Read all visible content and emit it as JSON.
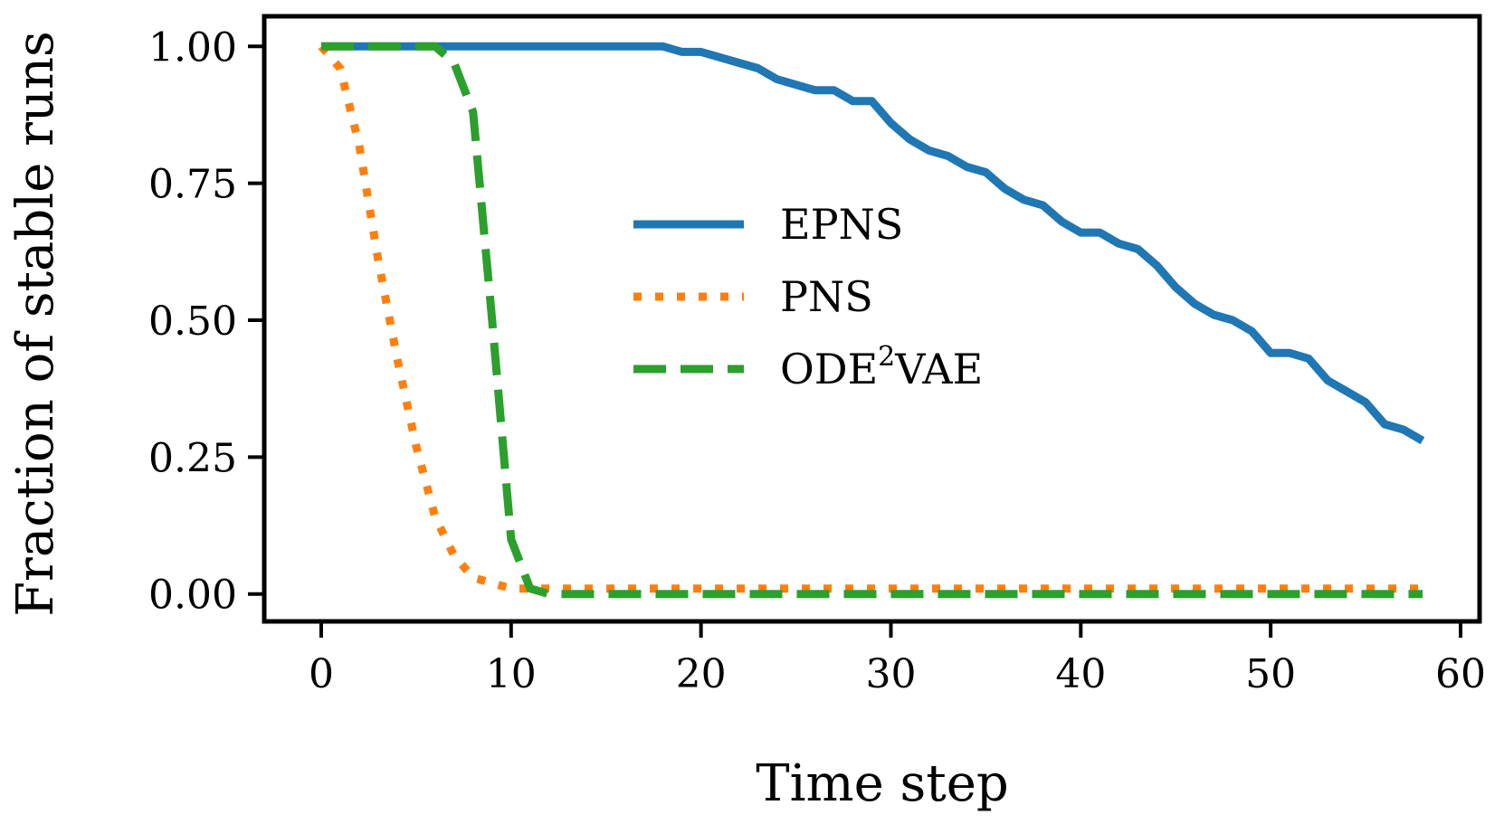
{
  "chart_data": {
    "type": "line",
    "xlabel": "Time step",
    "ylabel": "Fraction of stable runs",
    "xlim": [
      -3,
      61
    ],
    "ylim": [
      -0.05,
      1.055
    ],
    "xticks": [
      0,
      10,
      20,
      30,
      40,
      50,
      60
    ],
    "xtick_labels": [
      "0",
      "10",
      "20",
      "30",
      "40",
      "50",
      "60"
    ],
    "yticks": [
      0.0,
      0.25,
      0.5,
      0.75,
      1.0
    ],
    "ytick_labels": [
      "0.00",
      "0.25",
      "0.50",
      "0.75",
      "1.00"
    ],
    "grid": false,
    "legend_position": "center",
    "series": [
      {
        "name": "EPNS",
        "style": "solid",
        "color": "#1f77b4",
        "x": [
          0,
          1,
          2,
          3,
          4,
          5,
          6,
          7,
          8,
          9,
          10,
          11,
          12,
          13,
          14,
          15,
          16,
          17,
          18,
          19,
          20,
          21,
          22,
          23,
          24,
          25,
          26,
          27,
          28,
          29,
          30,
          31,
          32,
          33,
          34,
          35,
          36,
          37,
          38,
          39,
          40,
          41,
          42,
          43,
          44,
          45,
          46,
          47,
          48,
          49,
          50,
          51,
          52,
          53,
          54,
          55,
          56,
          57,
          58
        ],
        "y": [
          1.0,
          1.0,
          1.0,
          1.0,
          1.0,
          1.0,
          1.0,
          1.0,
          1.0,
          1.0,
          1.0,
          1.0,
          1.0,
          1.0,
          1.0,
          1.0,
          1.0,
          1.0,
          1.0,
          0.99,
          0.99,
          0.98,
          0.97,
          0.96,
          0.94,
          0.93,
          0.92,
          0.92,
          0.9,
          0.9,
          0.86,
          0.83,
          0.81,
          0.8,
          0.78,
          0.77,
          0.74,
          0.72,
          0.71,
          0.68,
          0.66,
          0.66,
          0.64,
          0.63,
          0.6,
          0.56,
          0.53,
          0.51,
          0.5,
          0.48,
          0.44,
          0.44,
          0.43,
          0.39,
          0.37,
          0.35,
          0.31,
          0.3,
          0.28
        ]
      },
      {
        "name": "PNS",
        "style": "dotted",
        "color": "#ff7f0e",
        "x": [
          0,
          1,
          2,
          3,
          4,
          5,
          6,
          7,
          8,
          9,
          10,
          11,
          12,
          13,
          14,
          15,
          16,
          17,
          18,
          19,
          20,
          21,
          22,
          23,
          24,
          25,
          26,
          27,
          28,
          29,
          30,
          31,
          32,
          33,
          34,
          35,
          36,
          37,
          38,
          39,
          40,
          41,
          42,
          43,
          44,
          45,
          46,
          47,
          48,
          49,
          50,
          51,
          52,
          53,
          54,
          55,
          56,
          57,
          58
        ],
        "y": [
          1.0,
          0.96,
          0.82,
          0.61,
          0.43,
          0.27,
          0.14,
          0.07,
          0.03,
          0.02,
          0.01,
          0.01,
          0.01,
          0.01,
          0.01,
          0.01,
          0.01,
          0.01,
          0.01,
          0.01,
          0.01,
          0.01,
          0.01,
          0.01,
          0.01,
          0.01,
          0.01,
          0.01,
          0.01,
          0.01,
          0.01,
          0.01,
          0.01,
          0.01,
          0.01,
          0.01,
          0.01,
          0.01,
          0.01,
          0.01,
          0.01,
          0.01,
          0.01,
          0.01,
          0.01,
          0.01,
          0.01,
          0.01,
          0.01,
          0.01,
          0.01,
          0.01,
          0.01,
          0.01,
          0.01,
          0.01,
          0.01,
          0.01,
          0.01
        ]
      },
      {
        "name": "ODE",
        "name_sup": "2",
        "name_suffix": "VAE",
        "style": "dashed",
        "color": "#2ca02c",
        "x": [
          0,
          1,
          2,
          3,
          4,
          5,
          6,
          7,
          8,
          9,
          10,
          11,
          12,
          13,
          14,
          15,
          16,
          17,
          18,
          19,
          20,
          21,
          22,
          23,
          24,
          25,
          26,
          27,
          28,
          29,
          30,
          31,
          32,
          33,
          34,
          35,
          36,
          37,
          38,
          39,
          40,
          41,
          42,
          43,
          44,
          45,
          46,
          47,
          48,
          49,
          50,
          51,
          52,
          53,
          54,
          55,
          56,
          57,
          58
        ],
        "y": [
          1.0,
          1.0,
          1.0,
          1.0,
          1.0,
          1.0,
          1.0,
          0.97,
          0.88,
          0.5,
          0.1,
          0.01,
          0.0,
          0.0,
          0.0,
          0.0,
          0.0,
          0.0,
          0.0,
          0.0,
          0.0,
          0.0,
          0.0,
          0.0,
          0.0,
          0.0,
          0.0,
          0.0,
          0.0,
          0.0,
          0.0,
          0.0,
          0.0,
          0.0,
          0.0,
          0.0,
          0.0,
          0.0,
          0.0,
          0.0,
          0.0,
          0.0,
          0.0,
          0.0,
          0.0,
          0.0,
          0.0,
          0.0,
          0.0,
          0.0,
          0.0,
          0.0,
          0.0,
          0.0,
          0.0,
          0.0,
          0.0,
          0.0,
          0.0
        ]
      }
    ]
  }
}
